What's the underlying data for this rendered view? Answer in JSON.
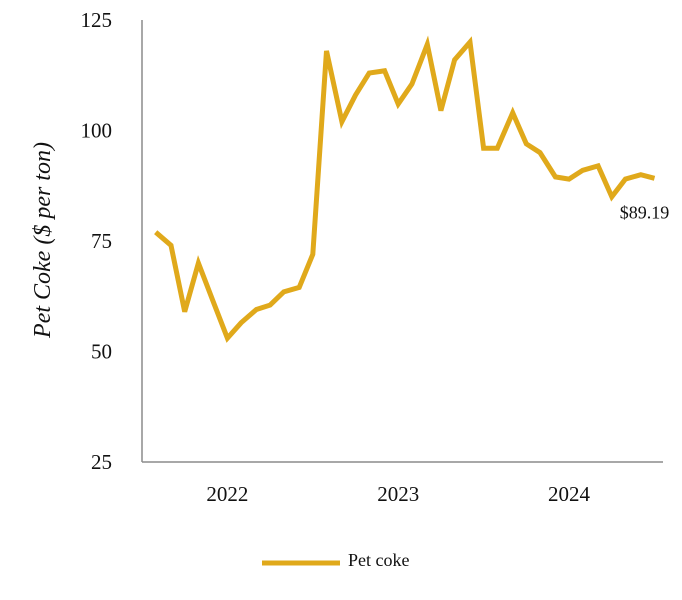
{
  "chart_data": {
    "type": "line",
    "title": "",
    "xlabel": "",
    "ylabel": "Pet Coke ($ per ton)",
    "ylim": [
      25,
      125
    ],
    "yticks": [
      "25",
      "50",
      "75",
      "100",
      "125"
    ],
    "xticks": [
      "2022",
      "2023",
      "2024"
    ],
    "grid": false,
    "legend_position": "bottom-center",
    "colors": {
      "series": "#e0a91b",
      "axis": "#8c8c8c"
    },
    "series": [
      {
        "name": "Pet coke",
        "x": [
          2021.58,
          2021.67,
          2021.75,
          2021.83,
          2021.92,
          2022.0,
          2022.08,
          2022.17,
          2022.25,
          2022.33,
          2022.42,
          2022.5,
          2022.58,
          2022.67,
          2022.75,
          2022.83,
          2022.92,
          2023.0,
          2023.08,
          2023.17,
          2023.25,
          2023.33,
          2023.42,
          2023.5,
          2023.58,
          2023.67,
          2023.75,
          2023.83,
          2023.92,
          2024.0,
          2024.08,
          2024.17,
          2024.25,
          2024.33,
          2024.42,
          2024.5
        ],
        "values": [
          77,
          74,
          59,
          70,
          61,
          53,
          56.5,
          59.5,
          60.5,
          63.5,
          64.5,
          72,
          118,
          102,
          108,
          113,
          113.5,
          106,
          110.5,
          119.5,
          104.5,
          116,
          120,
          96,
          96,
          104,
          97,
          95,
          89.5,
          89,
          91,
          92,
          85,
          89,
          90,
          89.19
        ]
      }
    ],
    "annotations": [
      {
        "text": "$89.19"
      }
    ]
  }
}
